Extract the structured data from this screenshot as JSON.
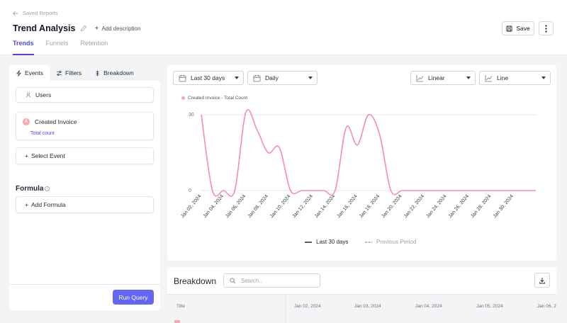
{
  "header": {
    "back_label": "Saved Reports",
    "title": "Trend Analysis",
    "add_description": "Add description",
    "save_label": "Save",
    "tabs": [
      "Trends",
      "Funnels",
      "Retention"
    ],
    "active_tab": "Trends"
  },
  "left_panel": {
    "tabs": [
      "Events",
      "Filters",
      "Breakdown"
    ],
    "active_tab": "Events",
    "users_label": "Users",
    "event": {
      "name": "Created Invoice",
      "badge": "A",
      "metric": "Total count"
    },
    "select_event": "Select Event",
    "formula_label": "Formula",
    "add_formula": "Add Formula",
    "run_query": "Run Query"
  },
  "controls": {
    "date_range": "Last 30 days",
    "interval": "Daily",
    "scale": "Linear",
    "chart_type": "Line"
  },
  "chart_data": {
    "type": "line",
    "series": [
      {
        "name": "Created Invoice - Total Count",
        "color": "#f48fa8",
        "points": [
          [
            "2024-01-02",
            30
          ],
          [
            "2024-01-03",
            0
          ],
          [
            "2024-01-04",
            0
          ],
          [
            "2024-01-05",
            0
          ],
          [
            "2024-01-06",
            31
          ],
          [
            "2024-01-07",
            24
          ],
          [
            "2024-01-08",
            15
          ],
          [
            "2024-01-09",
            17
          ],
          [
            "2024-01-10",
            0
          ],
          [
            "2024-01-11",
            0
          ],
          [
            "2024-01-12",
            0
          ],
          [
            "2024-01-13",
            0
          ],
          [
            "2024-01-14",
            0
          ],
          [
            "2024-01-15",
            25
          ],
          [
            "2024-01-16",
            18
          ],
          [
            "2024-01-17",
            30
          ],
          [
            "2024-01-18",
            22
          ],
          [
            "2024-01-19",
            0
          ],
          [
            "2024-01-20",
            0
          ],
          [
            "2024-01-21",
            0
          ],
          [
            "2024-01-22",
            0
          ],
          [
            "2024-01-23",
            0
          ],
          [
            "2024-01-24",
            0
          ],
          [
            "2024-01-25",
            0
          ],
          [
            "2024-01-26",
            0
          ],
          [
            "2024-01-27",
            0
          ],
          [
            "2024-01-28",
            0
          ],
          [
            "2024-01-29",
            0
          ],
          [
            "2024-01-30",
            0
          ],
          [
            "2024-01-31",
            0
          ],
          [
            "2024-02-01",
            0
          ]
        ]
      }
    ],
    "y_ticks": [
      0,
      30
    ],
    "ylim": [
      0,
      30
    ],
    "x_tick_labels": [
      "Jan 02, 2024",
      "Jan 04, 2024",
      "Jan 06, 2024",
      "Jan 08, 2024",
      "Jan 10, 2024",
      "Jan 12, 2024",
      "Jan 14, 2024",
      "Jan 16, 2024",
      "Jan 18, 2024",
      "Jan 20, 2024",
      "Jan 22, 2024",
      "Jan 24, 2024",
      "Jan 26, 2024",
      "Jan 28, 2024",
      "Jan 30, 2024"
    ],
    "legend": [
      "Last 30 days",
      "Previous Period"
    ],
    "grid": true
  },
  "breakdown": {
    "title": "Breakdown",
    "search_placeholder": "Search..",
    "columns": [
      "Title",
      "Jan 02, 2024",
      "Jan 03, 2024",
      "Jan 04, 2024",
      "Jan 05, 2024",
      "Jan 06, 2"
    ]
  }
}
